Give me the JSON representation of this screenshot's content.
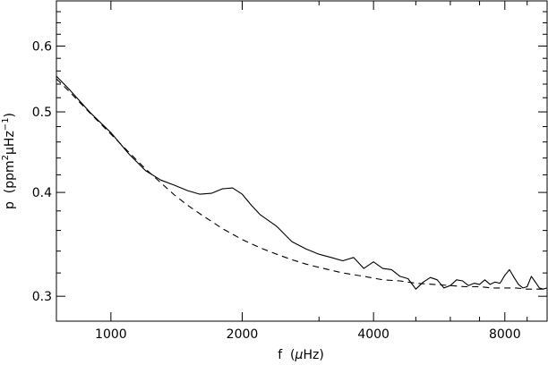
{
  "chart_data": {
    "type": "line",
    "title": "",
    "x_scale": "log",
    "y_scale": "log",
    "xlim": [
      750,
      10000
    ],
    "ylim": [
      0.28,
      0.68
    ],
    "x_ticks": [
      {
        "value": 1000,
        "label": "1000"
      },
      {
        "value": 2000,
        "label": "2000"
      },
      {
        "value": 4000,
        "label": "4000"
      },
      {
        "value": 8000,
        "label": "8000"
      }
    ],
    "y_ticks": [
      {
        "value": 0.3,
        "label": "0.3"
      },
      {
        "value": 0.4,
        "label": "0.4"
      },
      {
        "value": 0.5,
        "label": "0.5"
      },
      {
        "value": 0.6,
        "label": "0.6"
      }
    ],
    "xlabel": {
      "prefix": "f  (",
      "mu": "μ",
      "suffix": "Hz)"
    },
    "ylabel": {
      "p1": "p  (ppm",
      "sup1": "2",
      "p2": "μHz",
      "sup2": "−1",
      "p3": ")"
    },
    "grid": false,
    "legend": "none",
    "series": [
      {
        "style": "solid",
        "x": [
          750,
          800,
          900,
          1000,
          1100,
          1200,
          1300,
          1400,
          1500,
          1600,
          1700,
          1800,
          1900,
          2000,
          2100,
          2200,
          2400,
          2600,
          2800,
          3000,
          3200,
          3400,
          3600,
          3800,
          4000,
          4200,
          4400,
          4600,
          4800,
          5000,
          5200,
          5400,
          5600,
          5800,
          6000,
          6200,
          6400,
          6600,
          6800,
          7000,
          7200,
          7400,
          7600,
          7800,
          8000,
          8200,
          8400,
          8600,
          8800,
          9000,
          9200,
          9400,
          9600,
          9800,
          10000
        ],
        "y": [
          0.552,
          0.533,
          0.498,
          0.472,
          0.445,
          0.425,
          0.414,
          0.408,
          0.402,
          0.398,
          0.399,
          0.404,
          0.405,
          0.398,
          0.386,
          0.376,
          0.364,
          0.349,
          0.342,
          0.337,
          0.334,
          0.331,
          0.334,
          0.324,
          0.33,
          0.324,
          0.323,
          0.317,
          0.315,
          0.306,
          0.312,
          0.316,
          0.314,
          0.307,
          0.309,
          0.314,
          0.313,
          0.309,
          0.311,
          0.31,
          0.314,
          0.31,
          0.312,
          0.311,
          0.318,
          0.323,
          0.316,
          0.31,
          0.307,
          0.308,
          0.317,
          0.312,
          0.307,
          0.306,
          0.307
        ]
      },
      {
        "style": "dashed",
        "x": [
          750,
          800,
          900,
          1000,
          1100,
          1200,
          1300,
          1400,
          1500,
          1600,
          1800,
          2000,
          2200,
          2400,
          2600,
          2800,
          3000,
          3400,
          3800,
          4200,
          4600,
          5000,
          5500,
          6000,
          6500,
          7000,
          7500,
          8000,
          8500,
          9000,
          9500,
          10000
        ],
        "y": [
          0.548,
          0.53,
          0.497,
          0.47,
          0.447,
          0.427,
          0.411,
          0.397,
          0.386,
          0.377,
          0.362,
          0.351,
          0.343,
          0.337,
          0.332,
          0.328,
          0.325,
          0.32,
          0.317,
          0.314,
          0.313,
          0.311,
          0.31,
          0.309,
          0.308,
          0.308,
          0.307,
          0.307,
          0.307,
          0.306,
          0.306,
          0.306
        ]
      }
    ]
  }
}
